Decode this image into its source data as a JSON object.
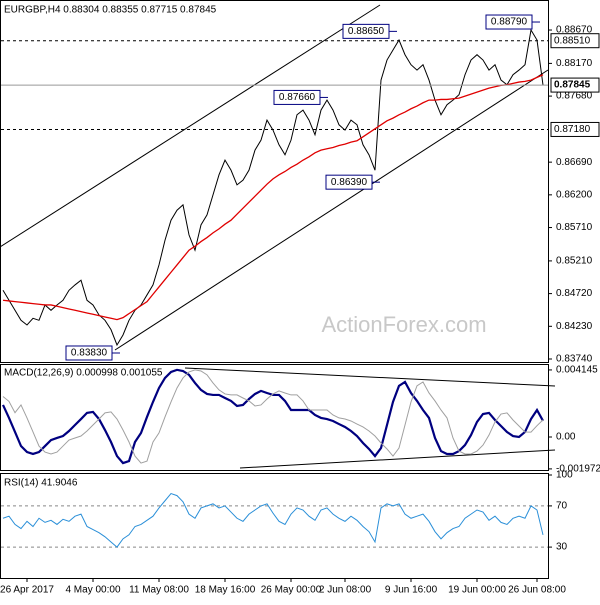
{
  "chart_data": {
    "type": "line",
    "title": "EURGBP,H4  0.88304 0.88355 0.87715 0.87845",
    "watermark": "ActionForex.com",
    "categories": [
      null,
      null,
      null,
      null,
      "26 Apr 2017",
      null,
      null,
      null,
      null,
      null,
      null,
      null,
      null,
      null,
      null,
      "4 May 00:00",
      null,
      null,
      null,
      null,
      null,
      null,
      null,
      null,
      null,
      null,
      "11 May 08:00",
      null,
      null,
      null,
      null,
      null,
      null,
      null,
      null,
      null,
      null,
      "18 May 16:00",
      null,
      null,
      null,
      null,
      null,
      null,
      null,
      null,
      null,
      null,
      "26 May 00:00",
      null,
      null,
      null,
      null,
      null,
      null,
      null,
      null,
      "2 Jun 08:00",
      null,
      null,
      null,
      null,
      null,
      null,
      null,
      null,
      null,
      null,
      "9 Jun 16:00",
      null,
      null,
      null,
      null,
      null,
      null,
      null,
      null,
      null,
      null,
      "19 Jun 00:00",
      null,
      null,
      null,
      null,
      null,
      null,
      null,
      null,
      null,
      "26 Jun 08:00",
      null
    ],
    "series": [
      {
        "color": "#000000",
        "values": [
          0.8477,
          0.8462,
          0.8447,
          0.8432,
          0.8425,
          0.8435,
          0.8432,
          0.8455,
          0.8447,
          0.8455,
          0.8462,
          0.8477,
          0.8485,
          0.8492,
          0.8462,
          0.8455,
          0.844,
          0.8432,
          0.8418,
          0.8395,
          0.841,
          0.8432,
          0.8447,
          0.8455,
          0.847,
          0.8485,
          0.8515,
          0.8552,
          0.8582,
          0.8597,
          0.8605,
          0.856,
          0.8537,
          0.8575,
          0.859,
          0.862,
          0.865,
          0.8672,
          0.8657,
          0.8635,
          0.8642,
          0.8657,
          0.8687,
          0.8702,
          0.8732,
          0.8717,
          0.8695,
          0.868,
          0.8702,
          0.874,
          0.8747,
          0.8732,
          0.871,
          0.8747,
          0.8762,
          0.8747,
          0.8725,
          0.8717,
          0.8732,
          0.8725,
          0.8695,
          0.868,
          0.8657,
          0.8792,
          0.8822,
          0.8837,
          0.8852,
          0.883,
          0.8815,
          0.8807,
          0.8815,
          0.8792,
          0.8762,
          0.874,
          0.8755,
          0.8762,
          0.877,
          0.88,
          0.8822,
          0.883,
          0.8822,
          0.8807,
          0.8815,
          0.8792,
          0.8785,
          0.88,
          0.8807,
          0.8815,
          0.8867,
          0.8852,
          0.87845
        ]
      },
      {
        "color": "#e00000",
        "values": [
          0.8462,
          0.8461,
          0.846,
          0.8459,
          0.8458,
          0.8457,
          0.8456,
          0.8455,
          0.8455,
          0.8453,
          0.8451,
          0.8449,
          0.8447,
          0.8445,
          0.8443,
          0.8441,
          0.8439,
          0.8437,
          0.8435,
          0.8433,
          0.8436,
          0.8442,
          0.8448,
          0.8454,
          0.846,
          0.8471,
          0.8482,
          0.8493,
          0.8504,
          0.8515,
          0.8526,
          0.8537,
          0.8543,
          0.855,
          0.8556,
          0.8563,
          0.8569,
          0.8576,
          0.8582,
          0.8591,
          0.86,
          0.8609,
          0.8618,
          0.8627,
          0.8636,
          0.8644,
          0.865,
          0.8655,
          0.8661,
          0.8666,
          0.8672,
          0.8677,
          0.8683,
          0.8687,
          0.8689,
          0.8691,
          0.8694,
          0.8696,
          0.8699,
          0.8701,
          0.8707,
          0.8713,
          0.8719,
          0.8725,
          0.8731,
          0.8735,
          0.874,
          0.8744,
          0.8749,
          0.8753,
          0.8758,
          0.8762,
          0.8762,
          0.8763,
          0.8763,
          0.8764,
          0.8765,
          0.8768,
          0.8771,
          0.8774,
          0.8777,
          0.878,
          0.8782,
          0.8784,
          0.8785,
          0.8787,
          0.8789,
          0.879,
          0.8792,
          0.8796,
          0.88
        ]
      }
    ],
    "ylim": [
      0.83695,
      0.8909
    ],
    "yticks": [
      {
        "value": 0.8867,
        "label": "0.88670"
      },
      {
        "value": 0.8817,
        "label": "0.88170"
      },
      {
        "value": 0.8768,
        "label": "0.87680"
      },
      {
        "value": 0.8669,
        "label": "0.86690"
      },
      {
        "value": 0.862,
        "label": "0.86200"
      },
      {
        "value": 0.8571,
        "label": "0.85710"
      },
      {
        "value": 0.8521,
        "label": "0.85210"
      },
      {
        "value": 0.8472,
        "label": "0.84720"
      },
      {
        "value": 0.8423,
        "label": "0.84230"
      },
      {
        "value": 0.8374,
        "label": "0.83740"
      }
    ],
    "hlines": [
      {
        "value": 0.8851,
        "label": "0.88510"
      },
      {
        "value": 0.8718,
        "label": "0.87180"
      }
    ],
    "annotations": [
      {
        "value": 0.8865,
        "label": "0.88650"
      },
      {
        "value": 0.8766,
        "label": "0.87660"
      },
      {
        "value": 0.8879,
        "label": "0.88790"
      },
      {
        "value": 0.8639,
        "label": "0.86390"
      },
      {
        "value": 0.8383,
        "label": "0.83830"
      }
    ],
    "macd": {
      "title": "MACD(12,26,9) 0.000998 0.001055",
      "ylim": [
        -0.00204,
        0.00445
      ],
      "yticks": [
        0.004145,
        {
          "value": 0,
          "label": "0.00"
        },
        -0.001972
      ],
      "series": [
        {
          "color": "#000080",
          "values": [
            0.00198,
            0.00118,
            0.00031,
            -0.00056,
            -0.00093,
            -0.00105,
            -0.00093,
            -0.00056,
            -0.00019,
            -6e-05,
            6e-05,
            0.00037,
            0.00074,
            0.00111,
            0.00149,
            0.00155,
            0.00111,
            0.00043,
            -0.00031,
            -0.00118,
            -0.00161,
            -0.00149,
            -0.00031,
            0.00025,
            0.00124,
            0.00217,
            0.00303,
            0.00365,
            0.00402,
            0.00415,
            0.00408,
            0.00384,
            0.00334,
            0.00291,
            0.00266,
            0.0026,
            0.0026,
            0.00241,
            0.00223,
            0.00192,
            0.00198,
            0.00235,
            0.00266,
            0.00285,
            0.00272,
            0.0026,
            0.0026,
            0.00223,
            0.00167,
            0.00167,
            0.00167,
            0.00167,
            0.00136,
            0.00118,
            0.00111,
            0.00099,
            0.0008,
            0.00062,
            0.00037,
            6e-05,
            -0.00037,
            -0.00074,
            -0.00118,
            -0.00068,
            0.00074,
            0.00217,
            0.00316,
            0.0034,
            0.00272,
            0.00223,
            0.00167,
            0.00118,
            -6e-05,
            -0.00087,
            -0.00105,
            -0.00105,
            -0.00087,
            -0.0005,
            0.00012,
            0.00093,
            0.00142,
            0.00149,
            0.00105,
            0.00068,
            0.00031,
            6e-05,
            0,
            0.00031,
            0.00111,
            0.00167,
            0.001
          ]
        },
        {
          "color": "#a0a0a0",
          "values": [
            0.0025,
            0.0022,
            0.0015,
            0.00198,
            0.00118,
            0.00031,
            -0.00056,
            -0.00093,
            -0.00105,
            -0.00093,
            -0.00056,
            -0.00019,
            -6e-05,
            6e-05,
            0.00037,
            0.00074,
            0.00111,
            0.00149,
            0.00155,
            0.00111,
            0.00043,
            -0.00031,
            -0.00118,
            -0.00161,
            -0.00149,
            -0.00031,
            0.00025,
            0.00124,
            0.00217,
            0.00303,
            0.00365,
            0.00402,
            0.00415,
            0.00408,
            0.00384,
            0.00334,
            0.00291,
            0.00266,
            0.0026,
            0.0026,
            0.00241,
            0.00223,
            0.00192,
            0.00198,
            0.00235,
            0.00266,
            0.00285,
            0.00272,
            0.0026,
            0.0026,
            0.00223,
            0.00167,
            0.00167,
            0.00167,
            0.00167,
            0.00136,
            0.00118,
            0.00111,
            0.00099,
            0.0008,
            0.00062,
            0.00037,
            6e-05,
            -0.00037,
            -0.00074,
            -0.00118,
            -0.00068,
            0.00074,
            0.00217,
            0.00316,
            0.0034,
            0.00272,
            0.00223,
            0.00167,
            0.00118,
            -6e-05,
            -0.00087,
            -0.00105,
            -0.00105,
            -0.00087,
            -0.0005,
            0.00012,
            0.00093,
            0.00142,
            0.00149,
            0.00105,
            0.00068,
            0.00031,
            0.0003,
            0.0007,
            0.00106
          ]
        }
      ]
    },
    "rsi": {
      "title": "RSI(14) 41.9046",
      "ylim": [
        0,
        100
      ],
      "yticks": [
        100,
        70,
        30
      ],
      "levels": [
        70,
        30
      ],
      "series": [
        {
          "color": "#2a8fd8",
          "values": [
            58,
            60,
            52,
            48,
            55,
            50,
            58,
            54,
            56,
            52,
            57,
            55,
            60,
            62,
            50,
            47,
            44,
            40,
            35,
            30,
            38,
            42,
            50,
            52,
            56,
            60,
            68,
            75,
            82,
            80,
            74,
            62,
            58,
            68,
            70,
            72,
            68,
            70,
            64,
            58,
            55,
            62,
            66,
            70,
            72,
            63,
            55,
            52,
            62,
            68,
            66,
            60,
            56,
            66,
            68,
            62,
            58,
            55,
            60,
            56,
            50,
            45,
            35,
            68,
            72,
            70,
            72,
            62,
            58,
            60,
            62,
            55,
            45,
            38,
            44,
            48,
            50,
            58,
            62,
            66,
            64,
            56,
            60,
            54,
            52,
            58,
            60,
            58,
            70,
            66,
            41.9046
          ]
        }
      ]
    }
  }
}
